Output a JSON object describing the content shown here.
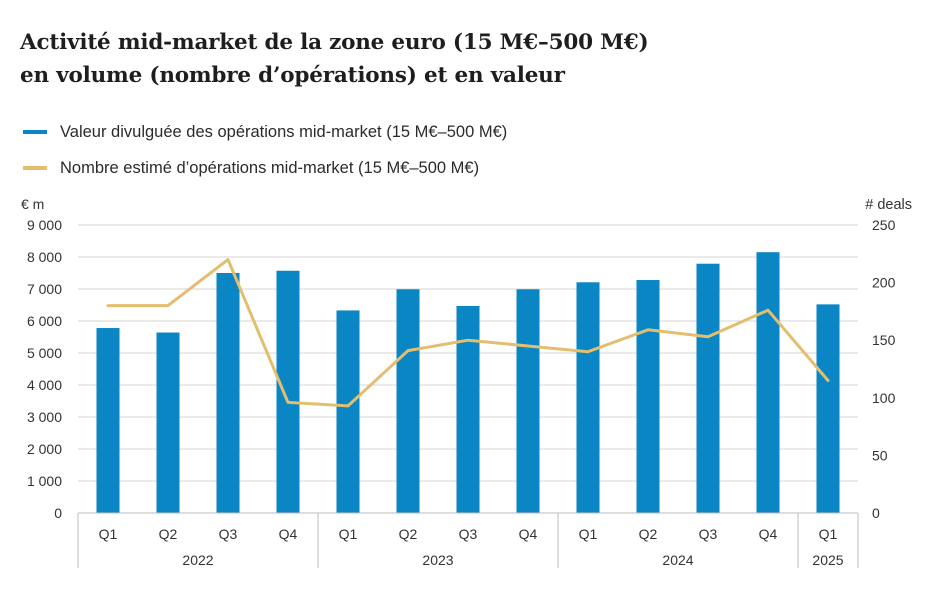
{
  "title_line1": "Activité mid-market de la zone euro (15 M€–500 M€)",
  "title_line2": "en volume (nombre d’opérations) et en valeur",
  "legend": [
    {
      "label": "Valeur divulguée des opérations mid-market (15 M€–500 M€)",
      "color": "#0a86c4"
    },
    {
      "label": "Nombre estimé d’opérations mid-market (15 M€–500 M€)",
      "color": "#e3be6e"
    }
  ],
  "colors": {
    "bar": "#0a86c4",
    "line": "#e3be6e",
    "grid": "#d4d4d4",
    "axis": "#bdbdbd"
  },
  "chart_data": {
    "type": "bar",
    "categories": [
      "Q1",
      "Q2",
      "Q3",
      "Q4",
      "Q1",
      "Q2",
      "Q3",
      "Q4",
      "Q1",
      "Q2",
      "Q3",
      "Q4",
      "Q1"
    ],
    "groups": [
      {
        "label": "2022",
        "count": 4
      },
      {
        "label": "2023",
        "count": 4
      },
      {
        "label": "2024",
        "count": 4
      },
      {
        "label": "2025",
        "count": 1
      }
    ],
    "series": [
      {
        "name": "Valeur divulguée des opérations mid-market (15 M€–500 M€)",
        "type": "bar",
        "axis": "left",
        "values": [
          5780,
          5640,
          7500,
          7570,
          6330,
          6990,
          6470,
          6990,
          7210,
          7280,
          7790,
          8150,
          6520
        ]
      },
      {
        "name": "Nombre estimé d’opérations mid-market (15 M€–500 M€)",
        "type": "line",
        "axis": "right",
        "values": [
          180,
          180,
          220,
          96,
          93,
          141,
          150,
          145,
          140,
          159,
          153,
          176,
          115
        ]
      }
    ],
    "left_axis": {
      "label": "€ m",
      "min": 0,
      "max": 9000,
      "step": 1000,
      "ticks": [
        "0",
        "1 000",
        "2 000",
        "3 000",
        "4 000",
        "5 000",
        "6 000",
        "7 000",
        "8 000",
        "9 000"
      ]
    },
    "right_axis": {
      "label": "# deals",
      "min": 0,
      "max": 250,
      "step": 50,
      "ticks": [
        "0",
        "50",
        "100",
        "150",
        "200",
        "250"
      ]
    },
    "grid": true,
    "legend_position": "top-left"
  }
}
